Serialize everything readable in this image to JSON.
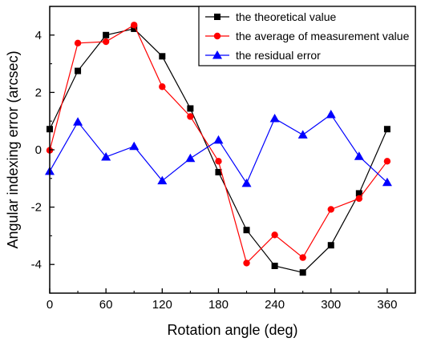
{
  "chart_data": {
    "type": "line",
    "xlabel": "Rotation angle (deg)",
    "ylabel": "Angular indexing error (arcsec)",
    "xlim": [
      0,
      390
    ],
    "ylim": [
      -5,
      5
    ],
    "x_ticks": [
      0,
      60,
      120,
      180,
      240,
      300,
      360
    ],
    "y_ticks": [
      -4,
      -2,
      0,
      2,
      4
    ],
    "x_tick_labels": [
      "0",
      "60",
      "120",
      "180",
      "240",
      "300",
      "360"
    ],
    "y_tick_labels": [
      "-4",
      "-2",
      "0",
      "2",
      "4"
    ],
    "grid": false,
    "legend_position": "top-right",
    "x": [
      0,
      30,
      60,
      90,
      120,
      150,
      180,
      210,
      240,
      270,
      300,
      330,
      360
    ],
    "series": [
      {
        "name": "the theoretical value",
        "color": "#000000",
        "marker": "square",
        "values": [
          0.72,
          2.75,
          4.0,
          4.22,
          3.26,
          1.44,
          -0.78,
          -2.8,
          -4.05,
          -4.28,
          -3.33,
          -1.52,
          0.72
        ]
      },
      {
        "name": "the average of measurement value",
        "color": "#ff0000",
        "marker": "circle",
        "values": [
          -0.02,
          3.72,
          3.77,
          4.35,
          2.2,
          1.16,
          -0.4,
          -3.95,
          -2.97,
          -3.76,
          -2.08,
          -1.7,
          -0.4
        ]
      },
      {
        "name": "the residual error",
        "color": "#0000ff",
        "marker": "triangle",
        "values": [
          -0.75,
          0.97,
          -0.25,
          0.12,
          -1.08,
          -0.3,
          0.34,
          -1.17,
          1.09,
          0.52,
          1.23,
          -0.23,
          -1.14
        ]
      }
    ]
  }
}
